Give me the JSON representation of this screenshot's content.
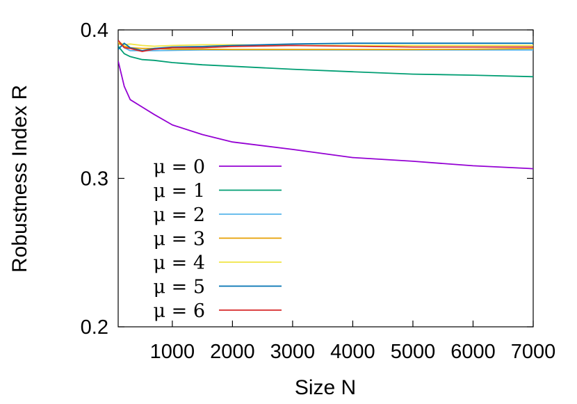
{
  "chart_data": {
    "type": "line",
    "title": "",
    "xlabel": "Size N",
    "ylabel": "Robustness Index R",
    "xlim": [
      100,
      7000
    ],
    "ylim": [
      0.2,
      0.4
    ],
    "x_ticks": [
      1000,
      2000,
      3000,
      4000,
      5000,
      6000,
      7000
    ],
    "y_ticks": [
      0.2,
      0.3,
      0.4
    ],
    "y_tick_labels": [
      "0.2",
      "0.3",
      "0.4"
    ],
    "grid": false,
    "legend_position": "bottom-left",
    "series": [
      {
        "name": "μ = 0",
        "color": "#9400d3",
        "x": [
          100,
          200,
          300,
          500,
          700,
          1000,
          1500,
          2000,
          3000,
          4000,
          5000,
          6000,
          7000
        ],
        "y": [
          0.379,
          0.362,
          0.353,
          0.348,
          0.343,
          0.336,
          0.3295,
          0.3245,
          0.3195,
          0.314,
          0.3115,
          0.3085,
          0.3065
        ]
      },
      {
        "name": "μ = 1",
        "color": "#009e73",
        "x": [
          100,
          200,
          300,
          500,
          700,
          1000,
          1500,
          2000,
          3000,
          4000,
          5000,
          6000,
          7000
        ],
        "y": [
          0.389,
          0.384,
          0.382,
          0.38,
          0.3795,
          0.378,
          0.3765,
          0.3755,
          0.3735,
          0.3718,
          0.3702,
          0.3695,
          0.3685
        ]
      },
      {
        "name": "μ = 2",
        "color": "#56b4e9",
        "x": [
          100,
          200,
          300,
          500,
          700,
          1000,
          1500,
          2000,
          3000,
          4000,
          5000,
          6000,
          7000
        ],
        "y": [
          0.392,
          0.388,
          0.386,
          0.386,
          0.386,
          0.3862,
          0.3865,
          0.3865,
          0.3865,
          0.3865,
          0.3865,
          0.3865,
          0.3865
        ]
      },
      {
        "name": "μ = 3",
        "color": "#e69f00",
        "x": [
          100,
          200,
          300,
          500,
          700,
          1000,
          1500,
          2000,
          3000,
          4000,
          5000,
          6000,
          7000
        ],
        "y": [
          0.391,
          0.389,
          0.388,
          0.3875,
          0.3875,
          0.387,
          0.387,
          0.3868,
          0.3868,
          0.3868,
          0.3868,
          0.387,
          0.3875
        ]
      },
      {
        "name": "μ = 4",
        "color": "#f0e442",
        "x": [
          100,
          200,
          300,
          500,
          700,
          1000,
          1500,
          2000,
          3000,
          4000,
          5000,
          6000,
          7000
        ],
        "y": [
          0.392,
          0.39,
          0.3905,
          0.3895,
          0.389,
          0.3895,
          0.39,
          0.39,
          0.3895,
          0.3895,
          0.3895,
          0.3895,
          0.3895
        ]
      },
      {
        "name": "μ = 5",
        "color": "#0072b2",
        "x": [
          100,
          200,
          300,
          500,
          700,
          1000,
          1500,
          2000,
          3000,
          4000,
          5000,
          6000,
          7000
        ],
        "y": [
          0.387,
          0.391,
          0.388,
          0.386,
          0.3875,
          0.3885,
          0.3888,
          0.3895,
          0.3905,
          0.391,
          0.391,
          0.391,
          0.391
        ]
      },
      {
        "name": "μ = 6",
        "color": "#d62728",
        "x": [
          100,
          200,
          300,
          500,
          700,
          1000,
          1500,
          2000,
          3000,
          4000,
          5000,
          6000,
          7000
        ],
        "y": [
          0.393,
          0.388,
          0.3875,
          0.3855,
          0.387,
          0.388,
          0.388,
          0.3888,
          0.3895,
          0.389,
          0.3885,
          0.3885,
          0.3885
        ]
      }
    ]
  }
}
